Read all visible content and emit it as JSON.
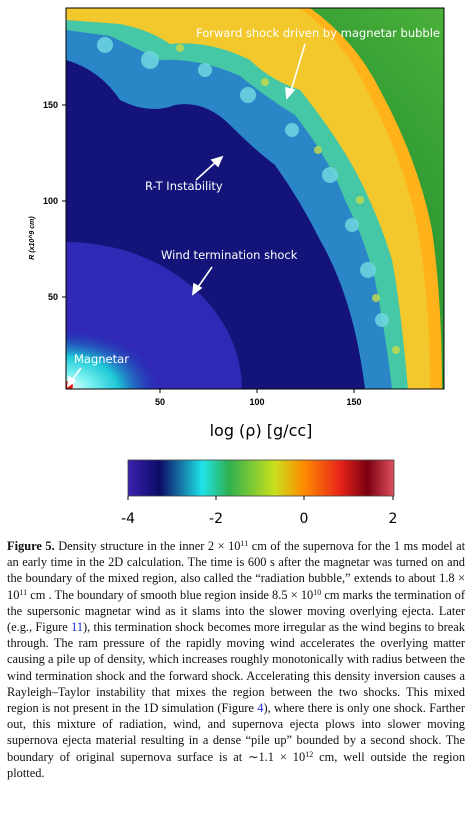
{
  "figure": {
    "annotations": {
      "forward_shock": "Forward shock driven by magnetar bubble",
      "rt": "R-T Instability",
      "wind": "Wind termination shock",
      "magnetar": "Magnetar"
    },
    "y_axis_label": "R  (x10^9  cm)",
    "y_ticks": [
      "50",
      "100",
      "150"
    ],
    "x_ticks": [
      "50",
      "100",
      "150"
    ],
    "colorbar_title": "log (ρ) [g/cc]",
    "colorbar_ticks": [
      "-4",
      "-2",
      "0",
      "2"
    ],
    "colorbar_range": [
      -4,
      2
    ],
    "colormap": [
      "#3a21b0",
      "#0b0c66",
      "#20e4e8",
      "#2fb04f",
      "#c8e01c",
      "#ff8c00",
      "#e8231a",
      "#7a0010",
      "#e0505e"
    ]
  },
  "caption": {
    "label": "Figure 5.",
    "s1": " Density structure in the inner 2 × 10",
    "e1": "11",
    "s2": " cm of the supernova for the 1 ms model at an early time in the 2D calculation. The time is 600 s after the magnetar was turned on and the boundary of the mixed region, also called the “radiation bubble,” extends to about 1.8 × 10",
    "e2": "11",
    "s3": " cm . The boundary of smooth blue region inside 8.5 × 10",
    "e3": "10",
    "s4": " cm marks the termination of the supersonic magnetar wind as it slams into the slower moving overlying ejecta. Later (e.g., Figure ",
    "ref1": "11",
    "s5": "), this termination shock becomes more irregular as the wind begins to break through. The ram pressure of the rapidly moving wind accelerates the overlying matter causing a pile up of density, which increases roughly monotonically with radius between the wind termination shock and the forward shock. Accelerating this density inversion causes a Rayleigh–Taylor instability that mixes the region between the two shocks. This mixed region is not present in the 1D simulation (Figure ",
    "ref2": "4",
    "s6": "), where there is only one shock. Farther out, this mixture of radiation, wind, and supernova ejecta plows into slower moving supernova ejecta material resulting in a dense “pile up” bounded by a second shock. The boundary of original supernova surface is at ∼1.1 × 10",
    "e4": "12",
    "s7": " cm, well outside the region plotted."
  }
}
